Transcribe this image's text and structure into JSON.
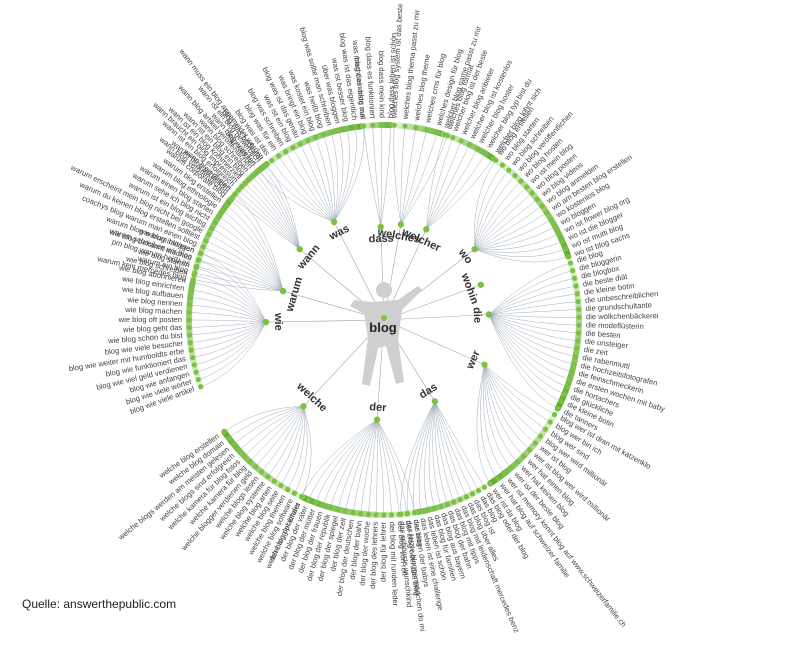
{
  "center": {
    "label": "blog"
  },
  "source": "Quelle: answerthepublic.com",
  "colors": {
    "dot": "#7cc242",
    "ring_dark": "#5dab2e",
    "ring_light": "#e4f2d8",
    "line": "#98a6b3",
    "hub": "#cfcfcf"
  },
  "branches": [
    {
      "label": "was",
      "items": [
        "blog was tun",
        "blog was bedeutet",
        "blog was ist das",
        "blog was für ein",
        "blog was schreiben",
        "was ist ein blog",
        "blog was ist das genau",
        "was bringt ein blog",
        "was kostet ein blog",
        "was heißt blog",
        "blog was sollte man schreiben",
        "über was bloggen",
        "was ist besser blog",
        "blog was ist das eigentlich",
        "was macht ein blog aus"
      ]
    },
    {
      "label": "dass",
      "items": [
        "blog das erste mal",
        "blog dass es funktioniert",
        "blog dass mein kind",
        "blog dass leben ist schön"
      ]
    },
    {
      "label": "welches",
      "items": [
        "welches blog system ist das beste",
        "welches blog thema passt zu mir",
        "welches blog theme",
        "welches cms für blog",
        "welches design für blog",
        "welches blog format"
      ]
    },
    {
      "label": "welcher",
      "items": [
        "welcher blog name passt zu mir",
        "welcher blog ist der beste",
        "welcher blog anbieter",
        "welcher blog ist kostenlos",
        "welcher blog hoster",
        "welcher blog typ bist du",
        "welcher blog lohnt sich"
      ]
    },
    {
      "label": "wo",
      "items": [
        "wo blog erstellen",
        "wo blog starten",
        "wo blog schreiben",
        "wo blog veröffentlichen",
        "wo blog hosten",
        "wo ist mein blog",
        "wo blog posten",
        "wo blog videos",
        "wo blog anmelden",
        "wo am besten blog erstellen",
        "wo kostenlos blog",
        "wo bloggen",
        "wo ist flower blog org",
        "wo ist die blogger",
        "wo ist mutti blog",
        "wo ist blog sachs"
      ]
    },
    {
      "label": "wohin",
      "items": []
    },
    {
      "label": "die",
      "items": [
        "die blog",
        "die bloggerin",
        "die blogbox",
        "die beste diät",
        "die kleine botin",
        "die unbeschreiblichen",
        "die grundschultante",
        "die wölkchenbäckerei",
        "die modeflüsterin",
        "die besten",
        "die unsteiger",
        "die zeit",
        "die rabenmutti",
        "die hochzeitsfotografen",
        "die feinschmeckerin",
        "die ersten wochen mit baby",
        "die hortachers",
        "die glückliche",
        "die kleine botin",
        "die tanners"
      ]
    },
    {
      "label": "wer",
      "items": [
        "blog wer ist dran mit katzenklo",
        "blog wer bin ich",
        "blog wer sind",
        "blog wer wird millionär",
        "wer ist blog",
        "wer ist blog wer wird millionär",
        "wer hat einen blog",
        "wer hat keinen blog",
        "wer ist der beste blog",
        "wer ist memory kennt blog auf www.schweizerfamilie.ch",
        "wer hat blog auf schweizer familie",
        "wer ist da blog"
      ]
    },
    {
      "label": "das",
      "items": [
        "das blog oder der blog",
        "das blog",
        "das blog ist",
        "das blog über alles",
        "das blog mit leidenschaft mercedes benz",
        "das blog mit tipps",
        "das blog der bahn",
        "das blog aus bayern",
        "das blog für familien",
        "das leben ist schön",
        "das leben ist eine challenge",
        "das leben der babys",
        "das letzte bloggermädchen do mi",
        "das schönste wunschkind"
      ]
    },
    {
      "label": "der",
      "items": [
        "der blog",
        "der blog oder das blog",
        "der blog von rofl",
        "der blog mit runden leder",
        "der blog für lehrer",
        "der blog des lehrers",
        "der blog der woche",
        "der blog der bahn",
        "der blog der deutschen",
        "der blog der zeit",
        "der blog der spiegel",
        "der blog der republik",
        "der blog der frauen",
        "der blog der mütter",
        "der blog der väter",
        "der blog der kinder"
      ]
    },
    {
      "label": "welche",
      "items": [
        "welche blog plattform",
        "welche blog software",
        "welche blog themen",
        "welche blog seite",
        "welche blog arten",
        "welche blog systeme",
        "welche blogs lesen",
        "welche blogger verdienen geld",
        "welche kamera für blog",
        "welche kamera für blog fotos",
        "welche blogs sind erfolgreich",
        "welche blogs werden am meisten gelesen",
        "welche blog domain",
        "welche blog erstellen"
      ]
    },
    {
      "label": "wie",
      "items": [
        "blog wie viele artikel",
        "blog wie viele wörter",
        "blog wie anfangen",
        "blog wie viel geld verdienen",
        "blog wie funktioniert das",
        "blog wie weiter mit humboldts erbe",
        "blog wie viele besucher",
        "wie blog schön du bist",
        "wie blog geht das",
        "wie blog oft posten",
        "wie blog machen",
        "wie blog nennen",
        "wie blog aufbauen",
        "wie blog einrichten",
        "wie blog abonnieren",
        "wie blog schreiben",
        "wie blog starten",
        "wie blog bekannt machen",
        "wie blog imitieren"
      ]
    },
    {
      "label": "warum",
      "items": [
        "warum kein mercedes blog",
        "warum ein blog",
        "pm blog warum heißt es",
        "warum schreiben wir blog",
        "warum blog warum bloggen",
        "coachys blog warum man einen blog",
        "warum du keinen blog erstellen solltest",
        "warum erscheint mein blog nicht bei google",
        "warum ist ein blog wichtig",
        "warum sehe ich blog nicht",
        "warum einen blog starten",
        "warum blog ethnologie",
        "warum blog erstellen",
        "warum corporate blog",
        "warum blog schreiben"
      ]
    },
    {
      "label": "wann",
      "items": [
        "wann blog veröffentlichen",
        "wann blog posten",
        "wann ist ein blog erfolgreich",
        "wann braucht ein blog impressum",
        "wann ist ein blog kommerziell",
        "wann ist ein blog ein blog",
        "wann blog schreiben",
        "wann blog artikel veröffentlichen",
        "wann blog erstellen",
        "wann ist ein blog gewerblich",
        "wann muss ein blog angemeldet werden"
      ]
    }
  ]
}
